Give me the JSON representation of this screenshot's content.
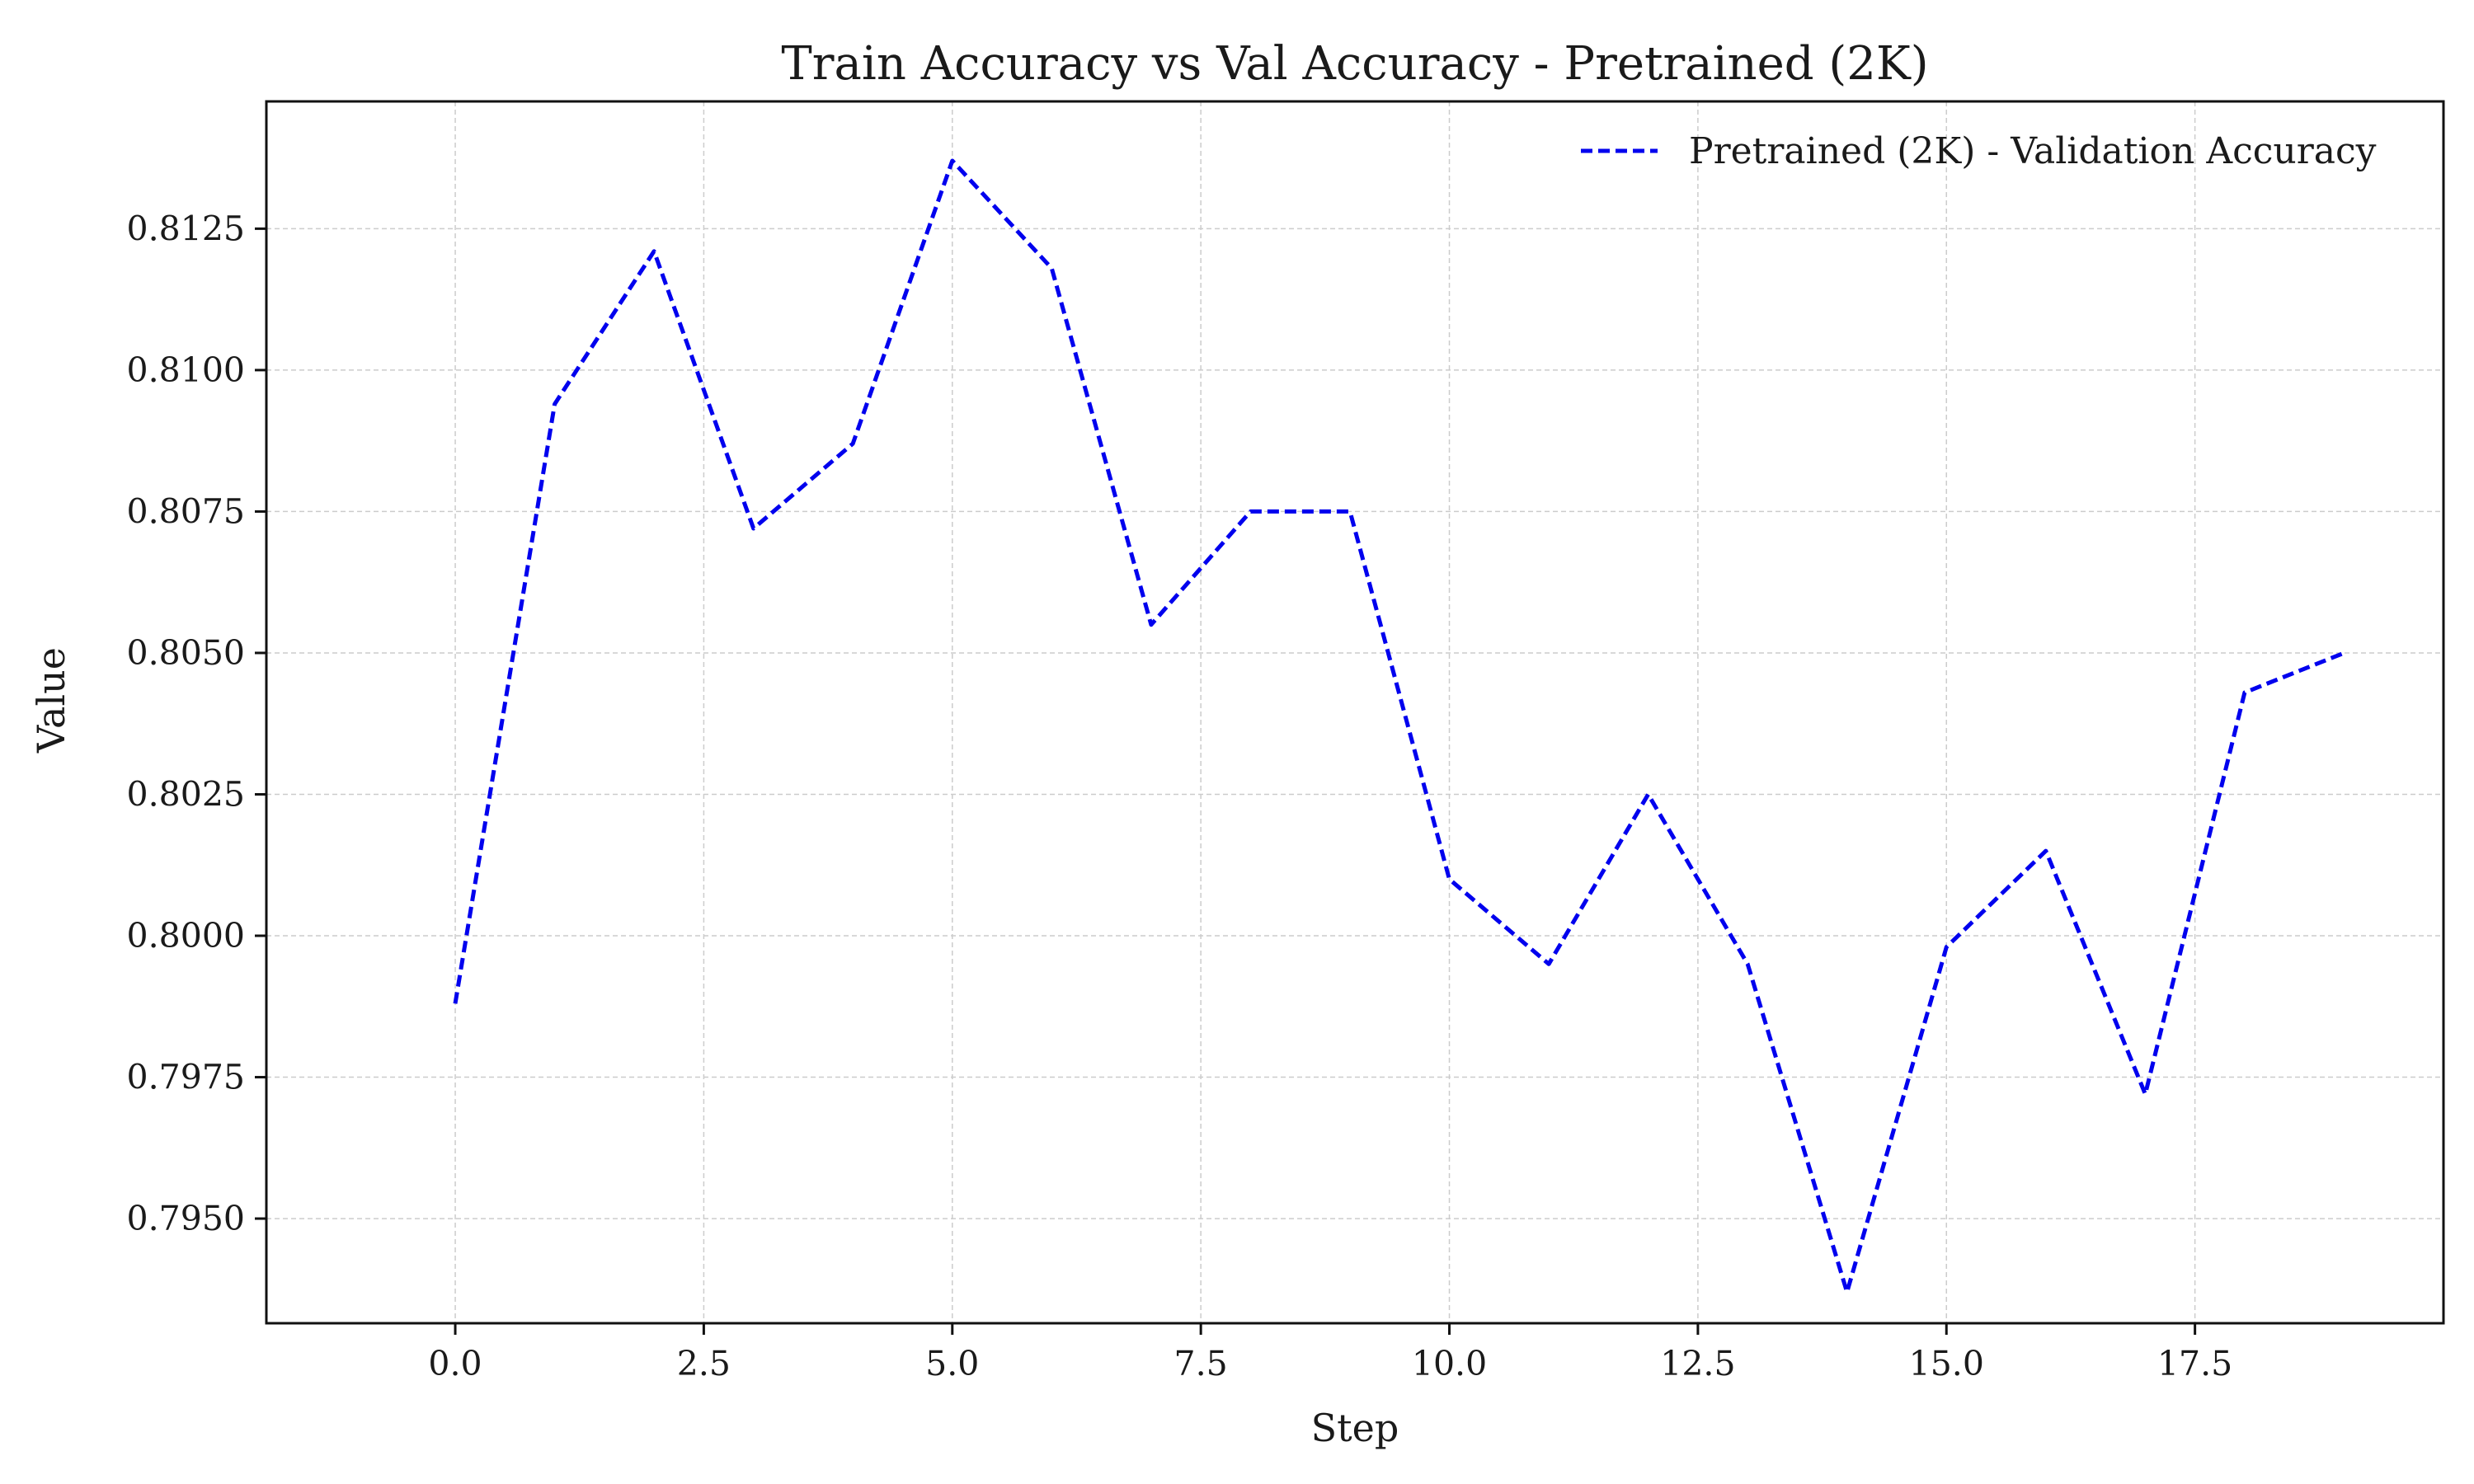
{
  "chart_data": {
    "type": "line",
    "title": "Train Accuracy vs Val Accuracy - Pretrained (2K)",
    "xlabel": "Step",
    "ylabel": "Value",
    "x": [
      0,
      1,
      2,
      3,
      4,
      5,
      6,
      7,
      8,
      9,
      10,
      11,
      12,
      13,
      14,
      15,
      16,
      17,
      18,
      19
    ],
    "series": [
      {
        "name": "Pretrained (2K) - Validation Accuracy",
        "color": "#0000ee",
        "linestyle": "dashed",
        "values": [
          0.7988,
          0.8094,
          0.8121,
          0.8072,
          0.8087,
          0.8137,
          0.8118,
          0.8055,
          0.8075,
          0.8075,
          0.801,
          0.7995,
          0.8025,
          0.7995,
          0.7937,
          0.7998,
          0.8015,
          0.7972,
          0.8043,
          0.805
        ]
      }
    ],
    "xlim": [
      -1.9,
      20.0
    ],
    "ylim": [
      0.79315,
      0.81475
    ],
    "xticks": [
      0.0,
      2.5,
      5.0,
      7.5,
      10.0,
      12.5,
      15.0,
      17.5
    ],
    "xtick_labels": [
      "0.0",
      "2.5",
      "5.0",
      "7.5",
      "10.0",
      "12.5",
      "15.0",
      "17.5"
    ],
    "yticks": [
      0.795,
      0.7975,
      0.8,
      0.8025,
      0.805,
      0.8075,
      0.81,
      0.8125
    ],
    "ytick_labels": [
      "0.7950",
      "0.7975",
      "0.8000",
      "0.8025",
      "0.8050",
      "0.8075",
      "0.8100",
      "0.8125"
    ],
    "grid": true,
    "legend_position": "top-right"
  }
}
